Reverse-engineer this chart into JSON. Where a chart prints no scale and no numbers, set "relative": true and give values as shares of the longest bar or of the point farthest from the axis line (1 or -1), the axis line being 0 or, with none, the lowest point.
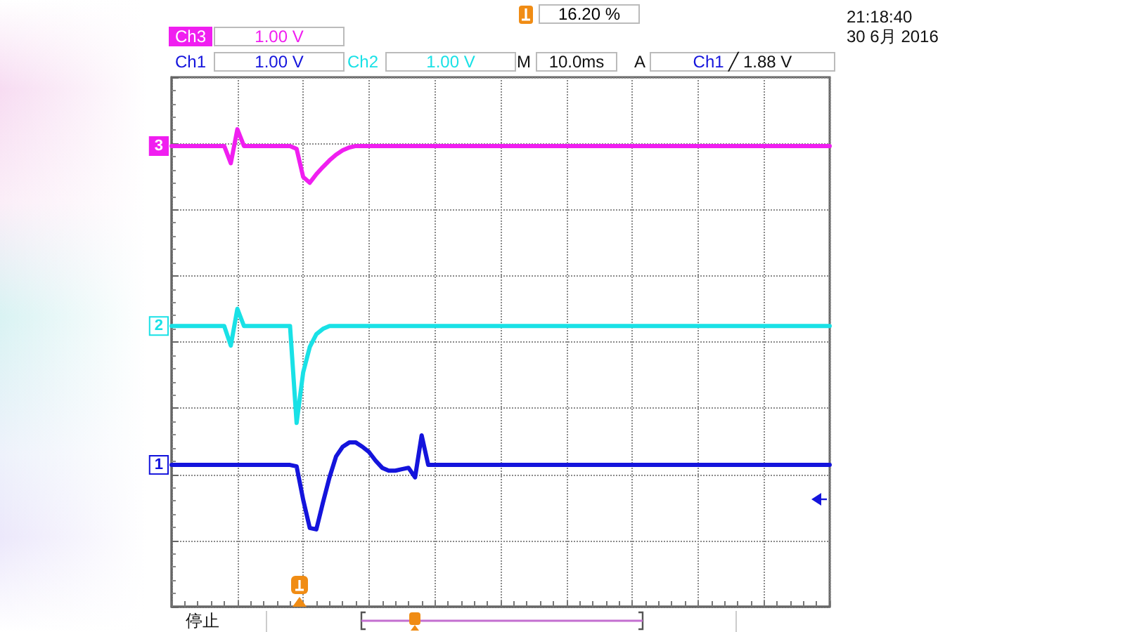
{
  "chart_data": {
    "type": "line",
    "relative": true,
    "grid": true,
    "line_style": "solid",
    "annotations": [
      "Ch3 1.00 V",
      "Ch1 1.00 V",
      "Ch2 1.00 V",
      "M 10.0ms",
      "A Ch1 ╱ 1.88 V",
      "16.20 %",
      "21:18:40",
      "30 6月 2016",
      "停止"
    ],
    "categories": [
      null,
      null,
      null,
      null,
      null,
      null,
      null,
      null,
      null,
      null,
      null,
      null,
      null,
      null,
      null,
      null,
      null,
      null,
      null,
      null,
      null,
      null,
      null,
      null,
      null,
      null,
      null,
      null,
      null,
      null,
      null,
      null,
      null,
      null,
      null,
      null,
      null,
      null,
      null,
      null,
      null,
      null,
      null,
      null,
      null,
      null,
      null,
      null,
      null,
      null,
      null,
      null,
      null,
      null,
      null,
      null,
      null,
      null,
      null,
      null,
      null,
      null,
      null,
      null,
      null,
      null,
      null,
      null,
      null,
      null,
      null,
      null,
      null,
      null,
      null,
      null,
      null,
      null,
      null,
      null,
      null,
      null,
      null,
      null,
      null,
      null,
      null,
      null,
      null,
      null,
      null,
      null,
      null,
      null,
      null,
      null,
      null,
      null,
      null,
      null,
      null
    ],
    "series": [
      {
        "name": "3",
        "color": "#f01ef0",
        "values": [
          0.965,
          0.965,
          0.965,
          0.965,
          0.965,
          0.965,
          0.965,
          0.965,
          0.965,
          0.929,
          1.0,
          0.965,
          0.965,
          0.965,
          0.965,
          0.965,
          0.965,
          0.965,
          0.965,
          0.959,
          0.9,
          0.888,
          0.906,
          0.921,
          0.935,
          0.947,
          0.956,
          0.962,
          0.965,
          0.965,
          0.965,
          0.965,
          0.965,
          0.965,
          0.965,
          0.965,
          0.965,
          0.965,
          0.965,
          0.965,
          0.965,
          0.965,
          0.965,
          0.965,
          0.965,
          0.965,
          0.965,
          0.965,
          0.965,
          0.965,
          0.965,
          0.965,
          0.965,
          0.965,
          0.965,
          0.965,
          0.965,
          0.965,
          0.965,
          0.965,
          0.965,
          0.965,
          0.965,
          0.965,
          0.965,
          0.965,
          0.965,
          0.965,
          0.965,
          0.965,
          0.965,
          0.965,
          0.965,
          0.965,
          0.965,
          0.965,
          0.965,
          0.965,
          0.965,
          0.965,
          0.965,
          0.965,
          0.965,
          0.965,
          0.965,
          0.965,
          0.965,
          0.965,
          0.965,
          0.965,
          0.965,
          0.965,
          0.965,
          0.965,
          0.965,
          0.965,
          0.965,
          0.965,
          0.965,
          0.965,
          0.965
        ]
      },
      {
        "name": "2",
        "color": "#19e1e6",
        "values": [
          0.588,
          0.588,
          0.588,
          0.588,
          0.588,
          0.588,
          0.588,
          0.588,
          0.588,
          0.547,
          0.624,
          0.588,
          0.588,
          0.588,
          0.588,
          0.588,
          0.588,
          0.588,
          0.588,
          0.385,
          0.491,
          0.544,
          0.571,
          0.582,
          0.588,
          0.588,
          0.588,
          0.588,
          0.588,
          0.588,
          0.588,
          0.588,
          0.588,
          0.588,
          0.588,
          0.588,
          0.588,
          0.588,
          0.588,
          0.588,
          0.588,
          0.588,
          0.588,
          0.588,
          0.588,
          0.588,
          0.588,
          0.588,
          0.588,
          0.588,
          0.588,
          0.588,
          0.588,
          0.588,
          0.588,
          0.588,
          0.588,
          0.588,
          0.588,
          0.588,
          0.588,
          0.588,
          0.588,
          0.588,
          0.588,
          0.588,
          0.588,
          0.588,
          0.588,
          0.588,
          0.588,
          0.588,
          0.588,
          0.588,
          0.588,
          0.588,
          0.588,
          0.588,
          0.588,
          0.588,
          0.588,
          0.588,
          0.588,
          0.588,
          0.588,
          0.588,
          0.588,
          0.588,
          0.588,
          0.588,
          0.588,
          0.588,
          0.588,
          0.588,
          0.588,
          0.588,
          0.588,
          0.588,
          0.588,
          0.588,
          0.588
        ]
      },
      {
        "name": "1",
        "color": "#1414dc",
        "values": [
          0.297,
          0.297,
          0.297,
          0.297,
          0.297,
          0.297,
          0.297,
          0.297,
          0.297,
          0.297,
          0.297,
          0.297,
          0.297,
          0.297,
          0.297,
          0.297,
          0.297,
          0.297,
          0.297,
          0.294,
          0.224,
          0.165,
          0.162,
          0.218,
          0.271,
          0.315,
          0.335,
          0.344,
          0.344,
          0.335,
          0.324,
          0.306,
          0.291,
          0.285,
          0.285,
          0.288,
          0.291,
          0.271,
          0.359,
          0.297,
          0.297,
          0.297,
          0.297,
          0.297,
          0.297,
          0.297,
          0.297,
          0.297,
          0.297,
          0.297,
          0.297,
          0.297,
          0.297,
          0.297,
          0.297,
          0.297,
          0.297,
          0.297,
          0.297,
          0.297,
          0.297,
          0.297,
          0.297,
          0.297,
          0.297,
          0.297,
          0.297,
          0.297,
          0.297,
          0.297,
          0.297,
          0.297,
          0.297,
          0.297,
          0.297,
          0.297,
          0.297,
          0.297,
          0.297,
          0.297,
          0.297,
          0.297,
          0.297,
          0.297,
          0.297,
          0.297,
          0.297,
          0.297,
          0.297,
          0.297,
          0.297,
          0.297,
          0.297,
          0.297,
          0.297,
          0.297,
          0.297,
          0.297,
          0.297,
          0.297,
          0.297
        ]
      }
    ]
  }
}
